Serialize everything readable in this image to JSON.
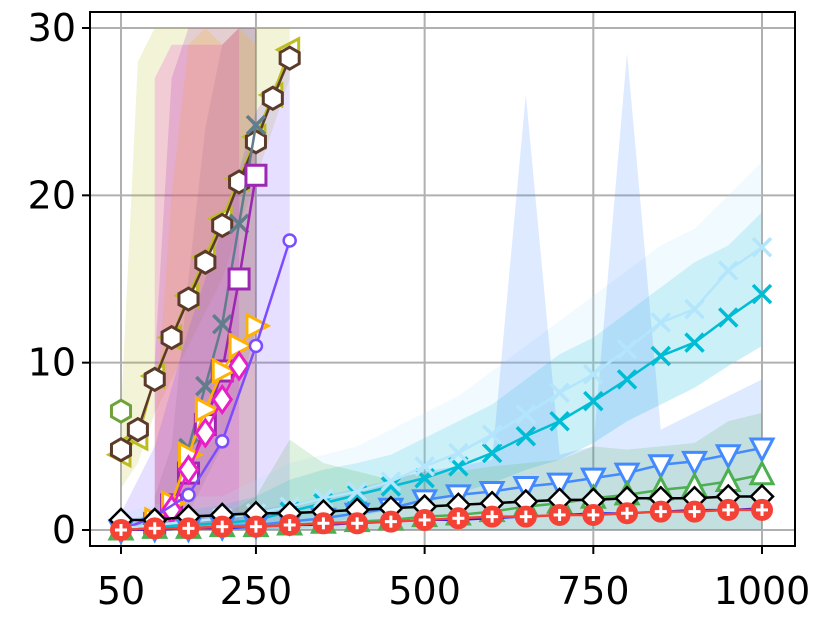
{
  "chart_data": {
    "type": "line",
    "title": "",
    "xlabel": "",
    "ylabel": "",
    "xlim": [
      30,
      1050
    ],
    "ylim": [
      -0.9,
      31
    ],
    "grid": true,
    "legend": "none",
    "x_ticks": [
      50,
      250,
      500,
      750,
      1000
    ],
    "x_tick_labels": [
      "50",
      "250",
      "500",
      "750",
      "1000"
    ],
    "y_ticks": [
      0,
      10,
      20,
      30
    ],
    "y_tick_labels": [
      "0",
      "10",
      "20",
      "30"
    ],
    "series": [
      {
        "color": "#bcbd22",
        "marker": "triangle-left",
        "x": [
          50,
          75,
          100,
          125,
          150,
          175,
          200,
          225,
          250,
          275,
          300
        ],
        "y": [
          4.5,
          5.5,
          9.2,
          11.5,
          14.0,
          16.3,
          18.6,
          21.0,
          23.5,
          26.0,
          28.7
        ],
        "band": [
          [
            2.5,
            7
          ],
          [
            4,
            28
          ],
          [
            7,
            30
          ],
          [
            9,
            30
          ],
          [
            11,
            30
          ],
          [
            13,
            30
          ],
          [
            15,
            30
          ],
          [
            18,
            30
          ],
          [
            21,
            30
          ],
          [
            24,
            30
          ],
          [
            27,
            30
          ]
        ]
      },
      {
        "color": "#5b3a29",
        "marker": "hexagon",
        "x": [
          50,
          75,
          100,
          125,
          150,
          175,
          200,
          225,
          250,
          275,
          300
        ],
        "y": [
          4.8,
          6.0,
          9.0,
          11.5,
          13.8,
          16.0,
          18.2,
          20.8,
          23.2,
          25.8,
          28.2
        ],
        "band": null
      },
      {
        "color": "#6fa33a",
        "marker": "hexagon",
        "x": [
          50
        ],
        "y": [
          7.1
        ],
        "band": null
      },
      {
        "color": "#607d8b",
        "marker": "x-marker",
        "x": [
          100,
          125,
          150,
          175,
          200,
          225,
          250
        ],
        "y": [
          0.3,
          1.0,
          4.9,
          8.6,
          12.3,
          18.3,
          24.2
        ],
        "band": [
          [
            0,
            2
          ],
          [
            0,
            5
          ],
          [
            1,
            15
          ],
          [
            3,
            24
          ],
          [
            5,
            29
          ],
          [
            8,
            30
          ],
          [
            12,
            30
          ]
        ]
      },
      {
        "color": "#9c27b0",
        "marker": "square",
        "x": [
          100,
          125,
          150,
          175,
          200,
          225,
          250
        ],
        "y": [
          0.4,
          1.5,
          3.4,
          6.3,
          9.5,
          15.0,
          21.2
        ],
        "band": [
          [
            0,
            10
          ],
          [
            0,
            27
          ],
          [
            0,
            30
          ],
          [
            0,
            30
          ],
          [
            0,
            30
          ],
          [
            0,
            30
          ],
          [
            0,
            30
          ]
        ]
      },
      {
        "color": "#ffb300",
        "marker": "triangle-right",
        "x": [
          100,
          125,
          150,
          175,
          200,
          225,
          250
        ],
        "y": [
          0.6,
          1.6,
          4.5,
          7.2,
          9.5,
          11.0,
          12.2
        ],
        "band": [
          [
            0,
            6
          ],
          [
            0,
            20
          ],
          [
            0,
            29
          ],
          [
            0,
            30
          ],
          [
            0,
            29
          ],
          [
            0,
            30
          ],
          [
            0,
            29
          ]
        ]
      },
      {
        "color": "#e91ec8",
        "marker": "diamond",
        "x": [
          100,
          125,
          150,
          175,
          200,
          225
        ],
        "y": [
          0.2,
          1.2,
          3.6,
          5.8,
          7.8,
          9.8
        ],
        "band": [
          [
            0,
            27
          ],
          [
            0,
            29
          ],
          [
            0,
            29
          ],
          [
            0,
            29
          ],
          [
            0,
            29
          ],
          [
            0,
            30
          ]
        ]
      },
      {
        "color": "#7c4dff",
        "marker": "circle",
        "x": [
          50,
          100,
          150,
          200,
          250,
          300
        ],
        "y": [
          0.0,
          0.8,
          2.1,
          5.3,
          11.0,
          17.3
        ],
        "band": [
          [
            0,
            1
          ],
          [
            0,
            5
          ],
          [
            0,
            12
          ],
          [
            0,
            18
          ],
          [
            0,
            25
          ],
          [
            0,
            28
          ]
        ]
      },
      {
        "color": "#00bcd4",
        "marker": "x-marker",
        "x": [
          50,
          100,
          150,
          200,
          250,
          300,
          350,
          400,
          450,
          500,
          550,
          600,
          650,
          700,
          750,
          800,
          850,
          900,
          950,
          1000
        ],
        "y": [
          0.1,
          0.2,
          0.3,
          0.4,
          0.6,
          1.1,
          1.6,
          2.1,
          2.6,
          3.1,
          3.8,
          4.6,
          5.6,
          6.5,
          7.7,
          9.0,
          10.4,
          11.2,
          12.7,
          14.1
        ],
        "band": [
          [
            0,
            0.6
          ],
          [
            0,
            0.9
          ],
          [
            0,
            1.2
          ],
          [
            0,
            1.5
          ],
          [
            0,
            2
          ],
          [
            0.1,
            3
          ],
          [
            0.3,
            3.6
          ],
          [
            0.8,
            4
          ],
          [
            1.2,
            4.5
          ],
          [
            1.6,
            5.5
          ],
          [
            2.2,
            6.5
          ],
          [
            2.8,
            7.5
          ],
          [
            3.6,
            9
          ],
          [
            4.2,
            10.5
          ],
          [
            5.2,
            11.5
          ],
          [
            6.5,
            13
          ],
          [
            7.5,
            14.5
          ],
          [
            8.5,
            16
          ],
          [
            9.8,
            17
          ],
          [
            11,
            19
          ]
        ]
      },
      {
        "color": "#b3e5fc",
        "marker": "x-marker",
        "x": [
          50,
          100,
          150,
          200,
          250,
          300,
          350,
          400,
          450,
          500,
          550,
          600,
          650,
          700,
          750,
          800,
          850,
          900,
          950,
          1000
        ],
        "y": [
          0.1,
          0.3,
          0.5,
          0.7,
          1.0,
          1.4,
          1.9,
          2.3,
          2.9,
          3.8,
          4.6,
          5.7,
          6.9,
          8.2,
          9.3,
          10.8,
          12.4,
          13.2,
          15.5,
          16.9
        ],
        "band": [
          [
            0,
            1
          ],
          [
            0,
            1.5
          ],
          [
            0,
            2
          ],
          [
            0,
            2
          ],
          [
            0,
            3
          ],
          [
            0,
            4
          ],
          [
            0.3,
            4.5
          ],
          [
            0.8,
            5
          ],
          [
            1.2,
            6
          ],
          [
            1.6,
            7
          ],
          [
            2.2,
            8
          ],
          [
            2.8,
            9.5
          ],
          [
            3.6,
            11
          ],
          [
            4.2,
            12.5
          ],
          [
            5.2,
            14
          ],
          [
            6.5,
            15.5
          ],
          [
            7.5,
            17
          ],
          [
            8.5,
            18
          ],
          [
            9.8,
            20
          ],
          [
            11,
            22
          ]
        ]
      },
      {
        "color": "#448aff",
        "marker": "triangle-down",
        "x": [
          50,
          100,
          150,
          200,
          250,
          300,
          350,
          400,
          450,
          500,
          550,
          600,
          650,
          700,
          750,
          800,
          850,
          900,
          950,
          1000
        ],
        "y": [
          0.0,
          0.1,
          0.1,
          0.2,
          0.3,
          0.5,
          0.7,
          1.0,
          1.3,
          1.8,
          2.1,
          2.3,
          2.6,
          2.8,
          3.1,
          3.4,
          3.9,
          4.1,
          4.5,
          4.9
        ],
        "band": [
          [
            0,
            0.4
          ],
          [
            0,
            0.6
          ],
          [
            0,
            0.8
          ],
          [
            0,
            1
          ],
          [
            0,
            1.2
          ],
          [
            0,
            1.5
          ],
          [
            0,
            2
          ],
          [
            0,
            2.5
          ],
          [
            0,
            3
          ],
          [
            0,
            3.5
          ],
          [
            0,
            3.8
          ],
          [
            0,
            4.2
          ],
          [
            0,
            26
          ],
          [
            0,
            4.5
          ],
          [
            0,
            5
          ],
          [
            0,
            28.5
          ],
          [
            0,
            6
          ],
          [
            0,
            7
          ],
          [
            0,
            8
          ],
          [
            0,
            9
          ]
        ]
      },
      {
        "color": "#4caf50",
        "marker": "triangle-up",
        "x": [
          50,
          100,
          150,
          200,
          250,
          300,
          350,
          400,
          450,
          500,
          550,
          600,
          650,
          700,
          750,
          800,
          850,
          900,
          950,
          1000
        ],
        "y": [
          0.0,
          0.1,
          0.1,
          0.2,
          0.2,
          0.3,
          0.4,
          0.5,
          0.6,
          0.8,
          0.9,
          1.1,
          1.4,
          1.6,
          1.9,
          2.1,
          2.4,
          2.6,
          2.9,
          3.3
        ],
        "band": [
          [
            0,
            0.2
          ],
          [
            0,
            0.5
          ],
          [
            0,
            0.6
          ],
          [
            0,
            0.8
          ],
          [
            0,
            2
          ],
          [
            0,
            5.4
          ],
          [
            0,
            4
          ],
          [
            0,
            3.5
          ],
          [
            0,
            3
          ],
          [
            0,
            3.5
          ],
          [
            0,
            3.5
          ],
          [
            0,
            3.8
          ],
          [
            0,
            4
          ],
          [
            0,
            4.2
          ],
          [
            0,
            5
          ],
          [
            0,
            4.8
          ],
          [
            0,
            5
          ],
          [
            0,
            5.2
          ],
          [
            0,
            6.5
          ],
          [
            0,
            7
          ]
        ]
      },
      {
        "color": "#000000",
        "marker": "diamond-open",
        "x": [
          50,
          100,
          150,
          200,
          250,
          300,
          350,
          400,
          450,
          500,
          550,
          600,
          650,
          700,
          750,
          800,
          850,
          900,
          950,
          1000
        ],
        "y": [
          0.6,
          0.6,
          0.8,
          0.9,
          1.0,
          1.0,
          1.1,
          1.2,
          1.3,
          1.4,
          1.5,
          1.6,
          1.7,
          1.8,
          1.8,
          1.9,
          1.9,
          1.9,
          2.0,
          2.0
        ],
        "band": null
      },
      {
        "color": "#1a1aff",
        "marker": "dot",
        "x": [
          50,
          100,
          150,
          200,
          250,
          300,
          350,
          400,
          450,
          500,
          550,
          600,
          650,
          700,
          750,
          800,
          850,
          900,
          950,
          1000
        ],
        "y": [
          0.0,
          0.0,
          0.1,
          0.1,
          0.2,
          0.3,
          0.3,
          0.4,
          0.5,
          0.6,
          0.6,
          0.7,
          0.8,
          0.9,
          1.0,
          1.0,
          1.1,
          1.2,
          1.2,
          1.3
        ],
        "band": null
      },
      {
        "color": "#f44336",
        "marker": "circle-plus",
        "x": [
          50,
          100,
          150,
          200,
          250,
          300,
          350,
          400,
          450,
          500,
          550,
          600,
          650,
          700,
          750,
          800,
          850,
          900,
          950,
          1000
        ],
        "y": [
          0.0,
          0.1,
          0.1,
          0.2,
          0.2,
          0.3,
          0.4,
          0.4,
          0.5,
          0.6,
          0.7,
          0.8,
          0.8,
          0.9,
          0.9,
          1.0,
          1.1,
          1.1,
          1.2,
          1.2
        ],
        "band": null
      }
    ]
  }
}
